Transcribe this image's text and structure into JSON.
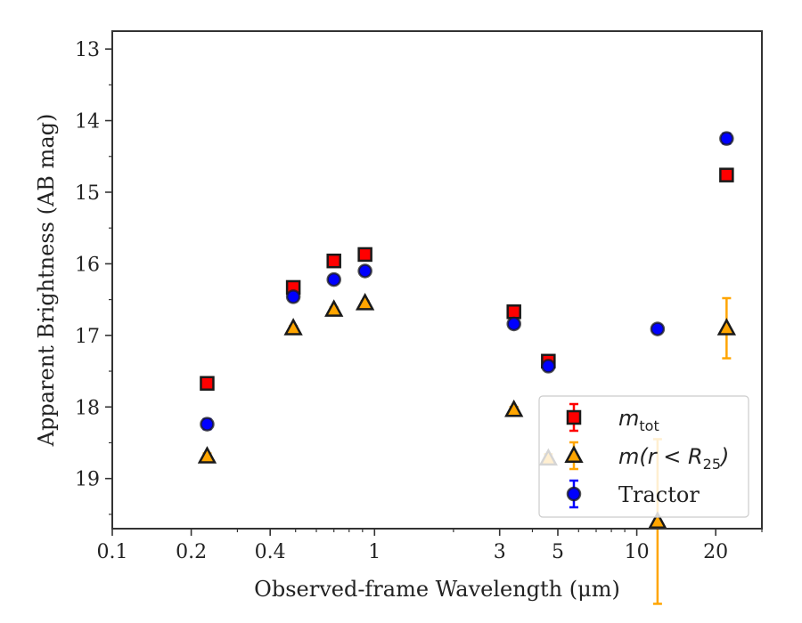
{
  "chart_data": {
    "type": "scatter",
    "xlabel": "Observed-frame Wavelength (μm)",
    "ylabel": "Apparent Brightness (AB mag)",
    "xscale": "log",
    "xlim": [
      0.1,
      30
    ],
    "ylim": [
      19.7,
      12.75
    ],
    "y_inverted": true,
    "x_ticks": [
      0.1,
      0.2,
      0.4,
      1,
      3,
      5,
      10,
      20
    ],
    "x_tick_labels": [
      "0.1",
      "0.2",
      "0.4",
      "1",
      "3",
      "5",
      "10",
      "20"
    ],
    "y_ticks": [
      13,
      14,
      15,
      16,
      17,
      18,
      19
    ],
    "y_tick_labels": [
      "13",
      "14",
      "15",
      "16",
      "17",
      "18",
      "19"
    ],
    "legend_position": "lower-right",
    "series": [
      {
        "key": "mtot",
        "name_main": "m",
        "name_sub": "tot",
        "marker": "square",
        "color": "#ff0000",
        "errcolor": "#ff0000",
        "points": [
          {
            "x": 0.23,
            "y": 17.67,
            "err": 0.04
          },
          {
            "x": 0.49,
            "y": 16.33,
            "err": 0.03
          },
          {
            "x": 0.7,
            "y": 15.96,
            "err": 0.03
          },
          {
            "x": 0.92,
            "y": 15.87,
            "err": 0.03
          },
          {
            "x": 3.4,
            "y": 16.67,
            "err": 0.03
          },
          {
            "x": 4.6,
            "y": 17.36,
            "err": 0.04
          },
          {
            "x": 22.0,
            "y": 14.76,
            "err": 0.05
          }
        ]
      },
      {
        "key": "mr25",
        "name_main": "m(r < R",
        "name_sub": "25",
        "name_end": ")",
        "marker": "triangle",
        "color": "#ffa500",
        "errcolor": "#ffa500",
        "points": [
          {
            "x": 0.23,
            "y": 18.69,
            "err": 0.04
          },
          {
            "x": 0.49,
            "y": 16.9,
            "err": 0.03
          },
          {
            "x": 0.7,
            "y": 16.64,
            "err": 0.03
          },
          {
            "x": 0.92,
            "y": 16.55,
            "err": 0.03
          },
          {
            "x": 3.4,
            "y": 18.04,
            "err": 0.04
          },
          {
            "x": 4.6,
            "y": 18.72,
            "err": 0.06
          },
          {
            "x": 12.0,
            "y": 19.6,
            "err": 1.15
          },
          {
            "x": 22.0,
            "y": 16.9,
            "err": 0.42
          }
        ]
      },
      {
        "key": "tractor",
        "name_main": "Tractor",
        "marker": "circle",
        "color": "#0000ff",
        "errcolor": "#0000ff",
        "points": [
          {
            "x": 0.23,
            "y": 18.24,
            "err": 0.07
          },
          {
            "x": 0.49,
            "y": 16.46,
            "err": 0.05
          },
          {
            "x": 0.7,
            "y": 16.22,
            "err": 0.05
          },
          {
            "x": 0.92,
            "y": 16.1,
            "err": 0.05
          },
          {
            "x": 3.4,
            "y": 16.84,
            "err": 0.05
          },
          {
            "x": 4.6,
            "y": 17.43,
            "err": 0.05
          },
          {
            "x": 12.0,
            "y": 16.91,
            "err": 0.05
          },
          {
            "x": 22.0,
            "y": 14.25,
            "err": 0.07
          }
        ]
      }
    ]
  }
}
